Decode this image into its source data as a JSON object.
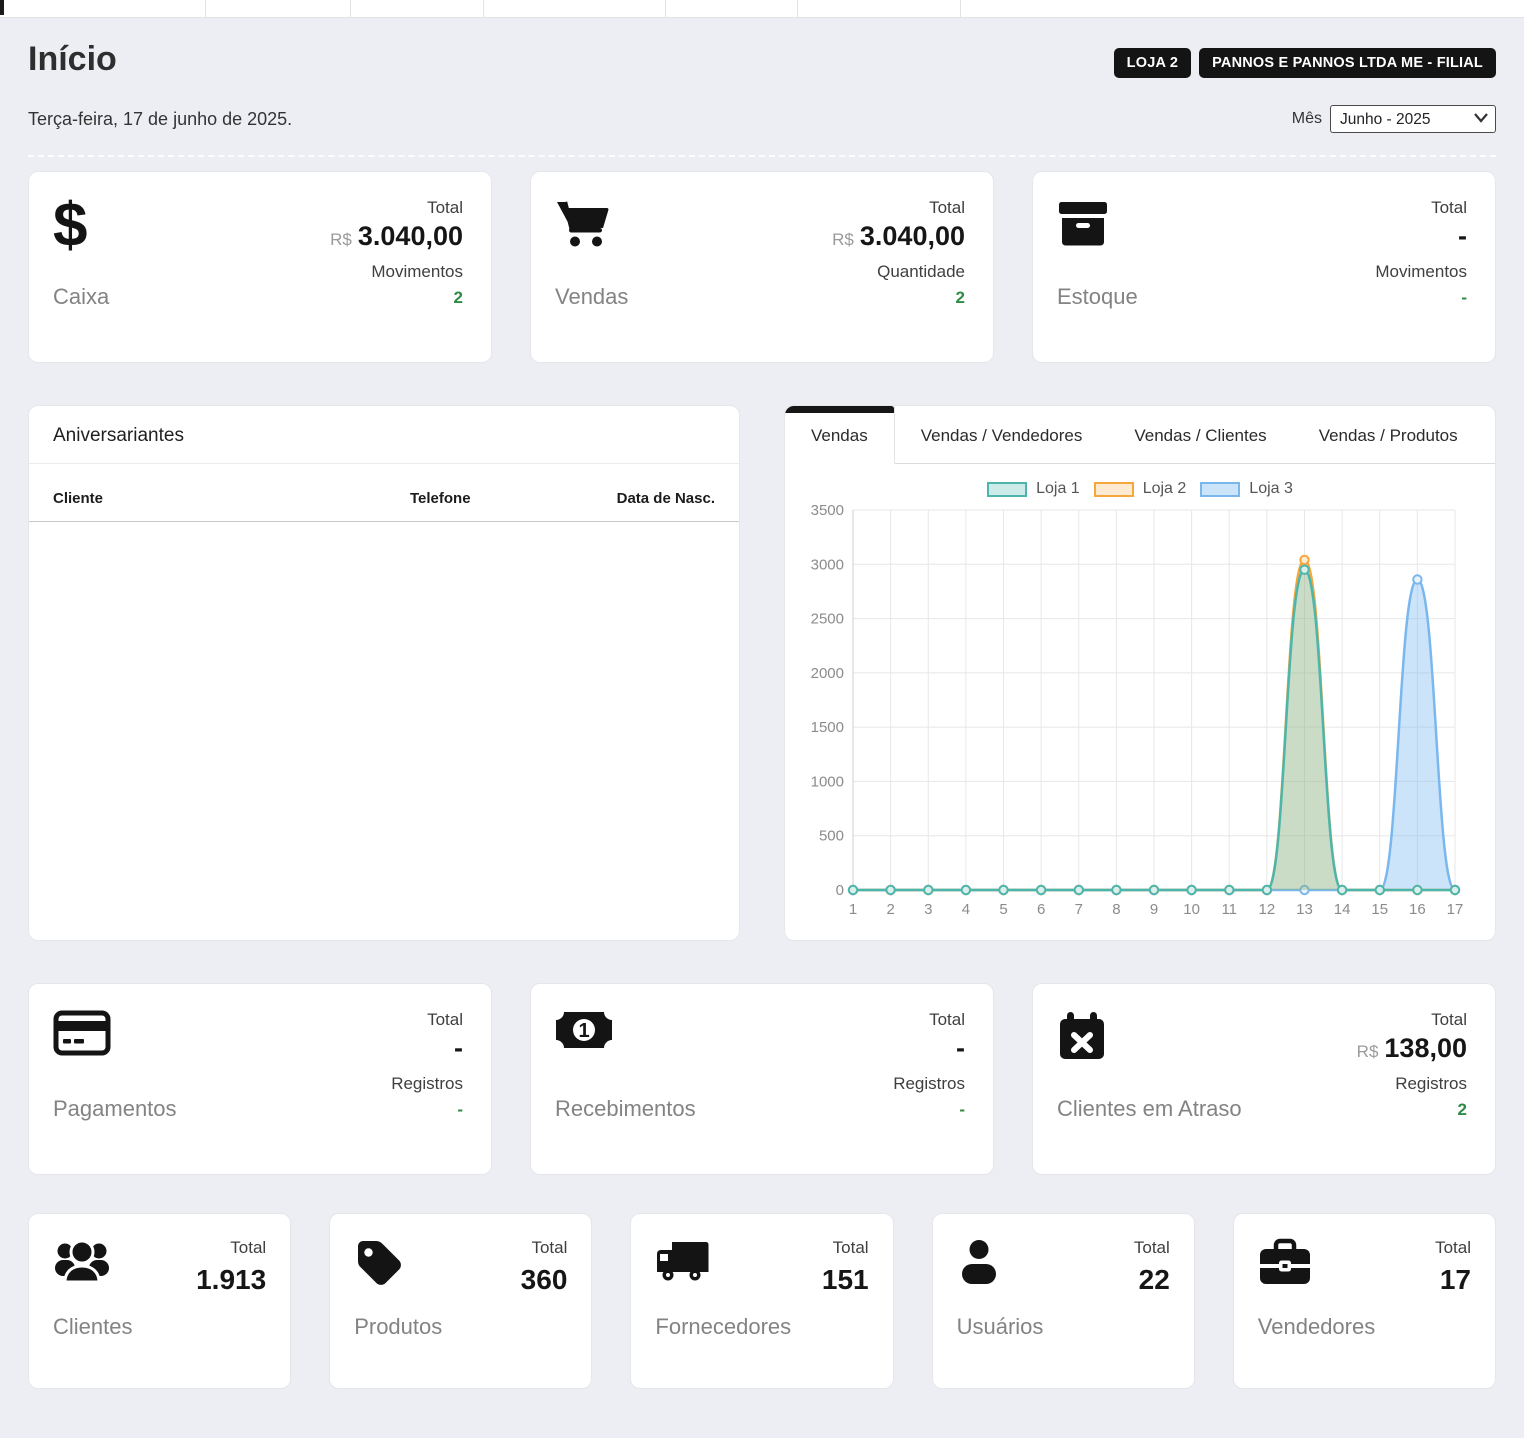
{
  "colors": {
    "positive": "#2f8a44",
    "badge_bg": "#141414",
    "page_bg": "#eceef3",
    "card_bg": "#ffffff"
  },
  "header": {
    "title": "Início",
    "badges": [
      "LOJA 2",
      "PANNOS E PANNOS LTDA ME - FILIAL"
    ],
    "date": "Terça-feira, 17 de junho de 2025.",
    "month_label": "Mês",
    "month_value": "Junho - 2025"
  },
  "stat_cards": [
    {
      "label": "Caixa",
      "icon": "dollar-icon",
      "m1_label": "Total",
      "currency": "R$",
      "m1_value": "3.040,00",
      "m2_label": "Movimentos",
      "m2_value": "2"
    },
    {
      "label": "Vendas",
      "icon": "cart-icon",
      "m1_label": "Total",
      "currency": "R$",
      "m1_value": "3.040,00",
      "m2_label": "Quantidade",
      "m2_value": "2"
    },
    {
      "label": "Estoque",
      "icon": "box-icon",
      "m1_label": "Total",
      "currency": "",
      "m1_value": "-",
      "m2_label": "Movimentos",
      "m2_value": "-"
    }
  ],
  "birthdays_panel": {
    "title": "Aniversariantes",
    "columns": [
      "Cliente",
      "Telefone",
      "Data de Nasc."
    ],
    "rows": []
  },
  "chart_panel": {
    "tabs": [
      "Vendas",
      "Vendas / Vendedores",
      "Vendas / Clientes",
      "Vendas / Produtos"
    ],
    "active_tab": "Vendas"
  },
  "chart_data": {
    "type": "area",
    "title": "",
    "xlabel": "",
    "ylabel": "",
    "x": [
      1,
      2,
      3,
      4,
      5,
      6,
      7,
      8,
      9,
      10,
      11,
      12,
      13,
      14,
      15,
      16,
      17
    ],
    "ylim": [
      0,
      3500
    ],
    "ytick": 500,
    "grid": true,
    "legend_position": "top",
    "series": [
      {
        "name": "Loja 1",
        "color": "#4db6ac",
        "fill": "rgba(77,182,172,0.28)",
        "marker": "#dceee9",
        "values": [
          0,
          0,
          0,
          0,
          0,
          0,
          0,
          0,
          0,
          0,
          0,
          0,
          2950,
          0,
          0,
          0,
          0
        ]
      },
      {
        "name": "Loja 2",
        "color": "#f5a63c",
        "fill": "rgba(245,166,60,0.24)",
        "marker": "#fdecd2",
        "values": [
          0,
          0,
          0,
          0,
          0,
          0,
          0,
          0,
          0,
          0,
          0,
          0,
          3040,
          0,
          0,
          0,
          0
        ]
      },
      {
        "name": "Loja 3",
        "color": "#7ab7ee",
        "fill": "rgba(122,183,238,0.38)",
        "marker": "#e9f3fc",
        "values": [
          0,
          0,
          0,
          0,
          0,
          0,
          0,
          0,
          0,
          0,
          0,
          0,
          0,
          0,
          0,
          2860,
          0
        ]
      }
    ]
  },
  "mid_cards": [
    {
      "label": "Pagamentos",
      "icon": "credit-card-icon",
      "m1_label": "Total",
      "currency": "",
      "m1_value": "-",
      "m2_label": "Registros",
      "m2_value": "-"
    },
    {
      "label": "Recebimentos",
      "icon": "money-bill-icon",
      "m1_label": "Total",
      "currency": "",
      "m1_value": "-",
      "m2_label": "Registros",
      "m2_value": "-"
    },
    {
      "label": "Clientes em Atraso",
      "icon": "calendar-x-icon",
      "m1_label": "Total",
      "currency": "R$",
      "m1_value": "138,00",
      "m2_label": "Registros",
      "m2_value": "2"
    }
  ],
  "count_cards": [
    {
      "label": "Clientes",
      "icon": "users-icon",
      "total_label": "Total",
      "value": "1.913"
    },
    {
      "label": "Produtos",
      "icon": "tag-icon",
      "total_label": "Total",
      "value": "360"
    },
    {
      "label": "Fornecedores",
      "icon": "truck-icon",
      "total_label": "Total",
      "value": "151"
    },
    {
      "label": "Usuários",
      "icon": "user-icon",
      "total_label": "Total",
      "value": "22"
    },
    {
      "label": "Vendedores",
      "icon": "briefcase-icon",
      "total_label": "Total",
      "value": "17"
    }
  ]
}
